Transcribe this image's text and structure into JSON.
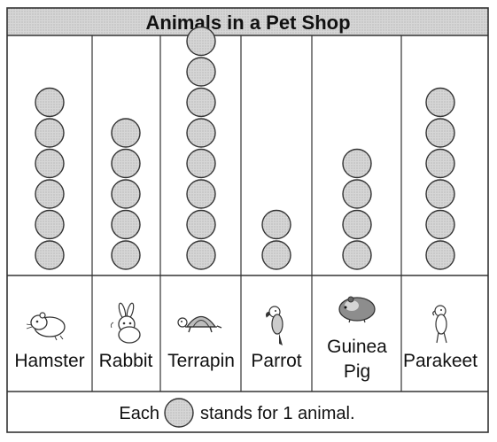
{
  "chart_data": {
    "type": "pictograph",
    "title": "Animals in a Pet Shop",
    "categories": [
      "Hamster",
      "Rabbit",
      "Terrapin",
      "Parrot",
      "Guinea Pig",
      "Parakeet"
    ],
    "values": [
      6,
      5,
      8,
      2,
      4,
      6
    ],
    "key": {
      "prefix": "Each",
      "suffix": "stands for 1 animal.",
      "value": 1
    },
    "colors": {
      "symbol_fill": "#cfcfcf",
      "title_band": "#e4e4e4",
      "line": "#333333"
    }
  }
}
